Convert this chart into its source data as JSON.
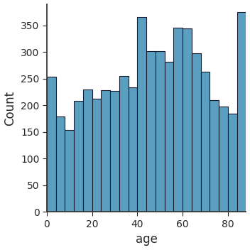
{
  "bar_heights": [
    253,
    179,
    154,
    208,
    230,
    212,
    228,
    227,
    255,
    233,
    365,
    301,
    302,
    282,
    345,
    344,
    297,
    263,
    210,
    198,
    185,
    375
  ],
  "bin_edges": [
    0,
    4,
    8,
    12,
    16,
    20,
    24,
    28,
    32,
    36,
    40,
    44,
    48,
    52,
    56,
    60,
    64,
    68,
    72,
    76,
    80,
    84,
    88
  ],
  "bar_color": "#5B9FC0",
  "bar_edgecolor": "#1a1a2e",
  "xlabel": "age",
  "ylabel": "Count",
  "xlim": [
    0,
    88
  ],
  "ylim": [
    0,
    390
  ],
  "xticks": [
    0,
    20,
    40,
    60,
    80
  ],
  "yticks": [
    0,
    50,
    100,
    150,
    200,
    250,
    300,
    350
  ],
  "xlabel_fontsize": 12,
  "ylabel_fontsize": 12,
  "tick_fontsize": 10
}
